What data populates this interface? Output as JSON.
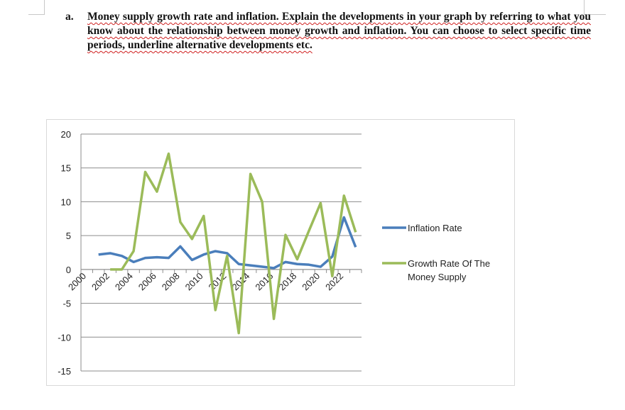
{
  "question": {
    "label": "a.",
    "text": "Money supply growth rate and inflation. Explain the developments in your graph by referring to what you know about the relationship between money growth and inflation. You can choose to select specific time periods, underline alternative developments etc."
  },
  "chart_data": {
    "type": "line",
    "title": "",
    "xlabel": "",
    "ylabel": "",
    "ylim": [
      -15,
      20
    ],
    "yticks": [
      20,
      15,
      10,
      5,
      0,
      -5,
      -10,
      -15
    ],
    "categories": [
      2000,
      2001,
      2002,
      2003,
      2004,
      2005,
      2006,
      2007,
      2008,
      2009,
      2010,
      2011,
      2012,
      2013,
      2014,
      2015,
      2016,
      2017,
      2018,
      2019,
      2020,
      2021,
      2022,
      2023
    ],
    "xtick_labels": [
      "2000",
      "2002",
      "2004",
      "2006",
      "2008",
      "2010",
      "2012",
      "2014",
      "2016",
      "2018",
      "2020",
      "2022"
    ],
    "grid": true,
    "legend": "right",
    "series": [
      {
        "name": "Inflation Rate",
        "color": "#4a7ebb",
        "values": [
          null,
          2.2,
          2.4,
          2.0,
          1.1,
          1.7,
          1.8,
          1.7,
          3.4,
          1.4,
          2.2,
          2.7,
          2.4,
          0.8,
          0.6,
          0.4,
          0.2,
          1.1,
          0.8,
          0.7,
          0.4,
          1.9,
          7.7,
          3.3
        ]
      },
      {
        "name": "Growth Rate Of The Money Supply",
        "color": "#9bbb59",
        "values": [
          null,
          null,
          0,
          0,
          2.7,
          14.4,
          11.5,
          17.1,
          7.0,
          4.5,
          7.9,
          -6.0,
          2.0,
          -9.4,
          14.1,
          10.0,
          -7.3,
          5.1,
          1.5,
          5.7,
          9.8,
          -1.0,
          10.9,
          5.5
        ]
      }
    ]
  }
}
